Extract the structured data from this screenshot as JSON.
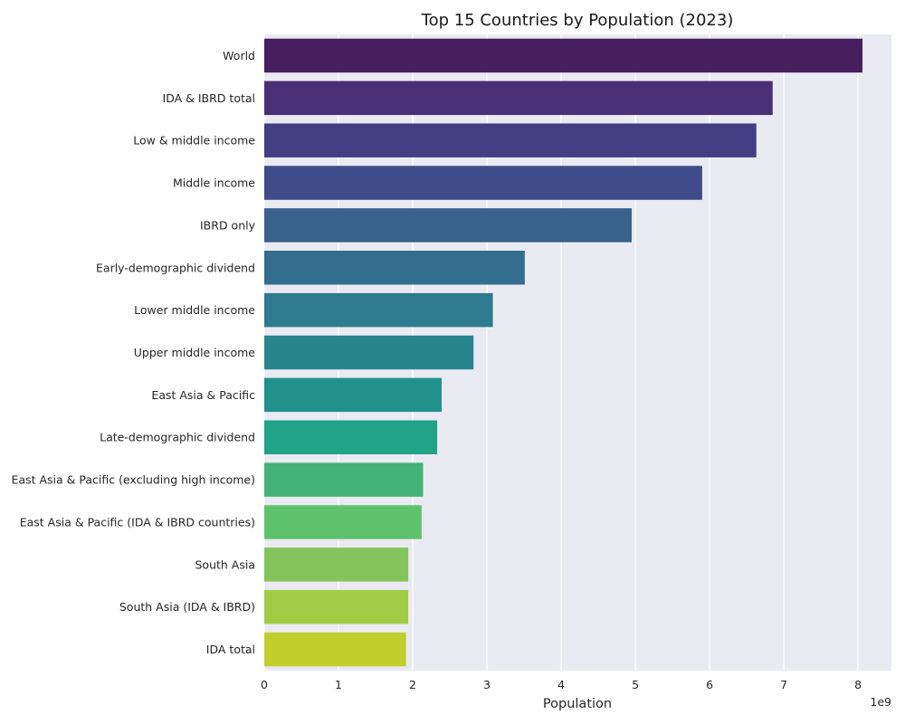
{
  "chart_data": {
    "type": "bar",
    "orientation": "horizontal",
    "title": "Top 15 Countries by Population (2023)",
    "xlabel": "Population",
    "ylabel": "",
    "x_scale_label": "1e9",
    "xlim": [
      0,
      8.45
    ],
    "x_unit_multiplier": 1000000000,
    "xticks": [
      "0",
      "1",
      "2",
      "3",
      "4",
      "5",
      "6",
      "7",
      "8"
    ],
    "grid": true,
    "legend": "none",
    "categories": [
      "World",
      "IDA & IBRD total",
      "Low & middle income",
      "Middle income",
      "IBRD only",
      "Early-demographic dividend",
      "Lower middle income",
      "Upper middle income",
      "East Asia & Pacific",
      "Late-demographic dividend",
      "East Asia & Pacific (excluding high income)",
      "East Asia & Pacific (IDA & IBRD countries)",
      "South Asia",
      "South Asia (IDA & IBRD)",
      "IDA total"
    ],
    "values": [
      8.06,
      6.85,
      6.63,
      5.9,
      4.95,
      3.51,
      3.08,
      2.82,
      2.39,
      2.33,
      2.14,
      2.12,
      1.94,
      1.94,
      1.91
    ],
    "colors": [
      "#481f5e",
      "#482f76",
      "#443e85",
      "#3e4c8a",
      "#38618c",
      "#336e8e",
      "#2e7a8e",
      "#28858e",
      "#21918c",
      "#20a386",
      "#45b376",
      "#5ec26d",
      "#84c45b",
      "#a2cc46",
      "#c1ce2e"
    ],
    "style": {
      "plot_background": "#eaeaf2",
      "grid_color": "#ffffff"
    }
  }
}
